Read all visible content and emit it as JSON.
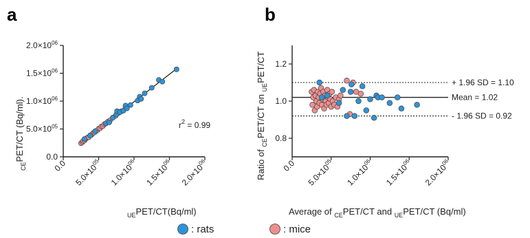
{
  "colors": {
    "rats": "#2f93d8",
    "mice": "#ee8f8f",
    "stroke": "#444444",
    "axis": "#222222"
  },
  "chart_data": [
    {
      "panel": "a",
      "type": "scatter",
      "xlabel": {
        "sub1": "UE",
        "main": "PET/CT(Bq/ml)"
      },
      "ylabel": {
        "sub1": "CE",
        "main": "PET/CT (Bq/ml)."
      },
      "xlim": [
        0,
        2000000
      ],
      "ylim": [
        0,
        2000000
      ],
      "x_ticks": [
        0,
        500000,
        1000000,
        1500000,
        2000000
      ],
      "x_tick_labels": [
        "0.0",
        "5.0×10",
        "1.0×10",
        "1.5×10",
        "2.0×10"
      ],
      "x_tick_exps": [
        "",
        "05",
        "06",
        "06",
        "06"
      ],
      "y_ticks": [
        0,
        500000,
        1000000,
        1500000,
        2000000
      ],
      "y_tick_labels": [
        "0.0",
        "5.0×10",
        "1.0×10",
        "1.5×10",
        "2.0×10"
      ],
      "y_tick_exps": [
        "",
        "05",
        "06",
        "06",
        "06"
      ],
      "annotation": {
        "text": "r",
        "sup": "2",
        "rest": " = 0.99"
      },
      "fit_line": {
        "x": [
          250000,
          1600000
        ],
        "y": [
          250000,
          1580000
        ]
      },
      "series": [
        {
          "name": "mice",
          "x": [
            250000,
            270000,
            280000,
            300000,
            310000,
            320000,
            340000,
            360000,
            380000,
            400000,
            420000,
            440000,
            460000,
            480000,
            500000,
            520000,
            540000,
            560000,
            580000,
            600000,
            630000,
            660000,
            700000,
            740000,
            780000,
            820000,
            880000
          ],
          "y": [
            245000,
            262000,
            285000,
            292000,
            318000,
            325000,
            345000,
            352000,
            385000,
            395000,
            425000,
            436000,
            462000,
            472000,
            505000,
            512000,
            545000,
            552000,
            585000,
            596000,
            632000,
            655000,
            705000,
            735000,
            786000,
            818000,
            895000
          ]
        },
        {
          "name": "rats",
          "x": [
            300000,
            380000,
            450000,
            600000,
            650000,
            700000,
            750000,
            760000,
            800000,
            850000,
            880000,
            900000,
            950000,
            1050000,
            1080000,
            1100000,
            1150000,
            1250000,
            1350000,
            1400000,
            1600000
          ],
          "y": [
            320000,
            380000,
            460000,
            600000,
            620000,
            700000,
            760000,
            820000,
            800000,
            830000,
            920000,
            870000,
            930000,
            1010000,
            1080000,
            1040000,
            1140000,
            1240000,
            1380000,
            1350000,
            1570000
          ]
        }
      ]
    },
    {
      "panel": "b",
      "type": "scatter",
      "xlabel": {
        "pre": "Average of ",
        "sub1": "CE",
        "mid": "PET/CT and ",
        "sub2": "UE",
        "post": "PET/CT (Bq/ml)"
      },
      "ylabel": {
        "pre": "Ratio of ",
        "sub1": "CE",
        "mid": "PET/CT on ",
        "sub2": "UE",
        "post": "PET/CT"
      },
      "xlim": [
        0,
        2000000
      ],
      "ylim": [
        0.7,
        1.3
      ],
      "x_ticks": [
        0,
        500000,
        1000000,
        1500000,
        2000000
      ],
      "x_tick_labels": [
        "0.0",
        "5.0×10",
        "1.0×10",
        "1.5×10",
        "2.0×10"
      ],
      "x_tick_exps": [
        "",
        "05",
        "06",
        "06",
        "06"
      ],
      "y_ticks": [
        0.8,
        1.0,
        1.2
      ],
      "y_tick_labels": [
        "0.8",
        "1.0",
        "1.2"
      ],
      "reference_lines": [
        {
          "value": 1.1,
          "style": "dotted",
          "label": "+ 1.96 SD = 1.10"
        },
        {
          "value": 1.02,
          "style": "solid",
          "label": "Mean = 1.02"
        },
        {
          "value": 0.92,
          "style": "dotted",
          "label": "- 1.96 SD = 0.92"
        }
      ],
      "series": [
        {
          "name": "mice",
          "x": [
            250000,
            260000,
            270000,
            280000,
            290000,
            300000,
            310000,
            320000,
            330000,
            340000,
            350000,
            360000,
            370000,
            380000,
            390000,
            400000,
            410000,
            420000,
            430000,
            440000,
            450000,
            460000,
            470000,
            480000,
            490000,
            500000,
            510000,
            520000,
            540000,
            560000,
            580000,
            600000,
            620000,
            700000,
            740000,
            780000,
            820000,
            880000
          ],
          "y": [
            1.05,
            0.98,
            1.02,
            1.06,
            0.95,
            1.03,
            1.0,
            0.97,
            1.05,
            1.02,
            0.99,
            1.04,
            1.07,
            0.98,
            1.01,
            1.05,
            0.96,
            1.03,
            1.0,
            0.98,
            1.06,
            1.02,
            0.99,
            1.04,
            1.01,
            0.97,
            1.05,
            1.0,
            0.98,
            1.02,
            0.97,
            1.01,
            1.03,
            1.11,
            0.93,
            1.1,
            1.05,
            1.04
          ]
        },
        {
          "name": "rats",
          "x": [
            350000,
            380000,
            450000,
            600000,
            650000,
            700000,
            750000,
            760000,
            800000,
            850000,
            900000,
            950000,
            1000000,
            1050000,
            1080000,
            1100000,
            1150000,
            1250000,
            1350000,
            1400000,
            1600000
          ],
          "y": [
            1.1,
            1.02,
            1.03,
            0.99,
            1.06,
            0.92,
            1.05,
            1.09,
            0.92,
            1.0,
            1.08,
            0.95,
            1.01,
            0.91,
            1.03,
            1.02,
            1.02,
            0.99,
            1.02,
            0.96,
            0.98
          ]
        }
      ]
    }
  ],
  "legend": [
    {
      "series": "rats",
      "label": ": rats"
    },
    {
      "series": "mice",
      "label": ": mice"
    }
  ]
}
